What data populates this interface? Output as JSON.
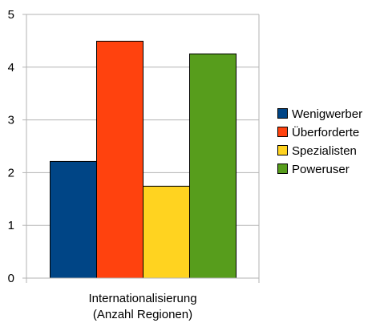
{
  "chart_data": {
    "type": "bar",
    "categories": [
      "Internationalisierung\n(Anzahl Regionen)"
    ],
    "category_lines": [
      "Internationalisierung",
      "(Anzahl Regionen)"
    ],
    "series": [
      {
        "name": "Wenigwerber",
        "values": [
          2.22
        ],
        "color": "#004586"
      },
      {
        "name": "Überforderte",
        "values": [
          4.5
        ],
        "color": "#ff420e"
      },
      {
        "name": "Spezialisten",
        "values": [
          1.75
        ],
        "color": "#ffd320"
      },
      {
        "name": "Poweruser",
        "values": [
          4.26
        ],
        "color": "#579d1c"
      }
    ],
    "title": "",
    "xlabel": "",
    "ylabel": "",
    "ylim": [
      0,
      5
    ],
    "yticks": [
      0,
      1,
      2,
      3,
      4,
      5
    ],
    "grid": true,
    "legend_position": "right"
  }
}
